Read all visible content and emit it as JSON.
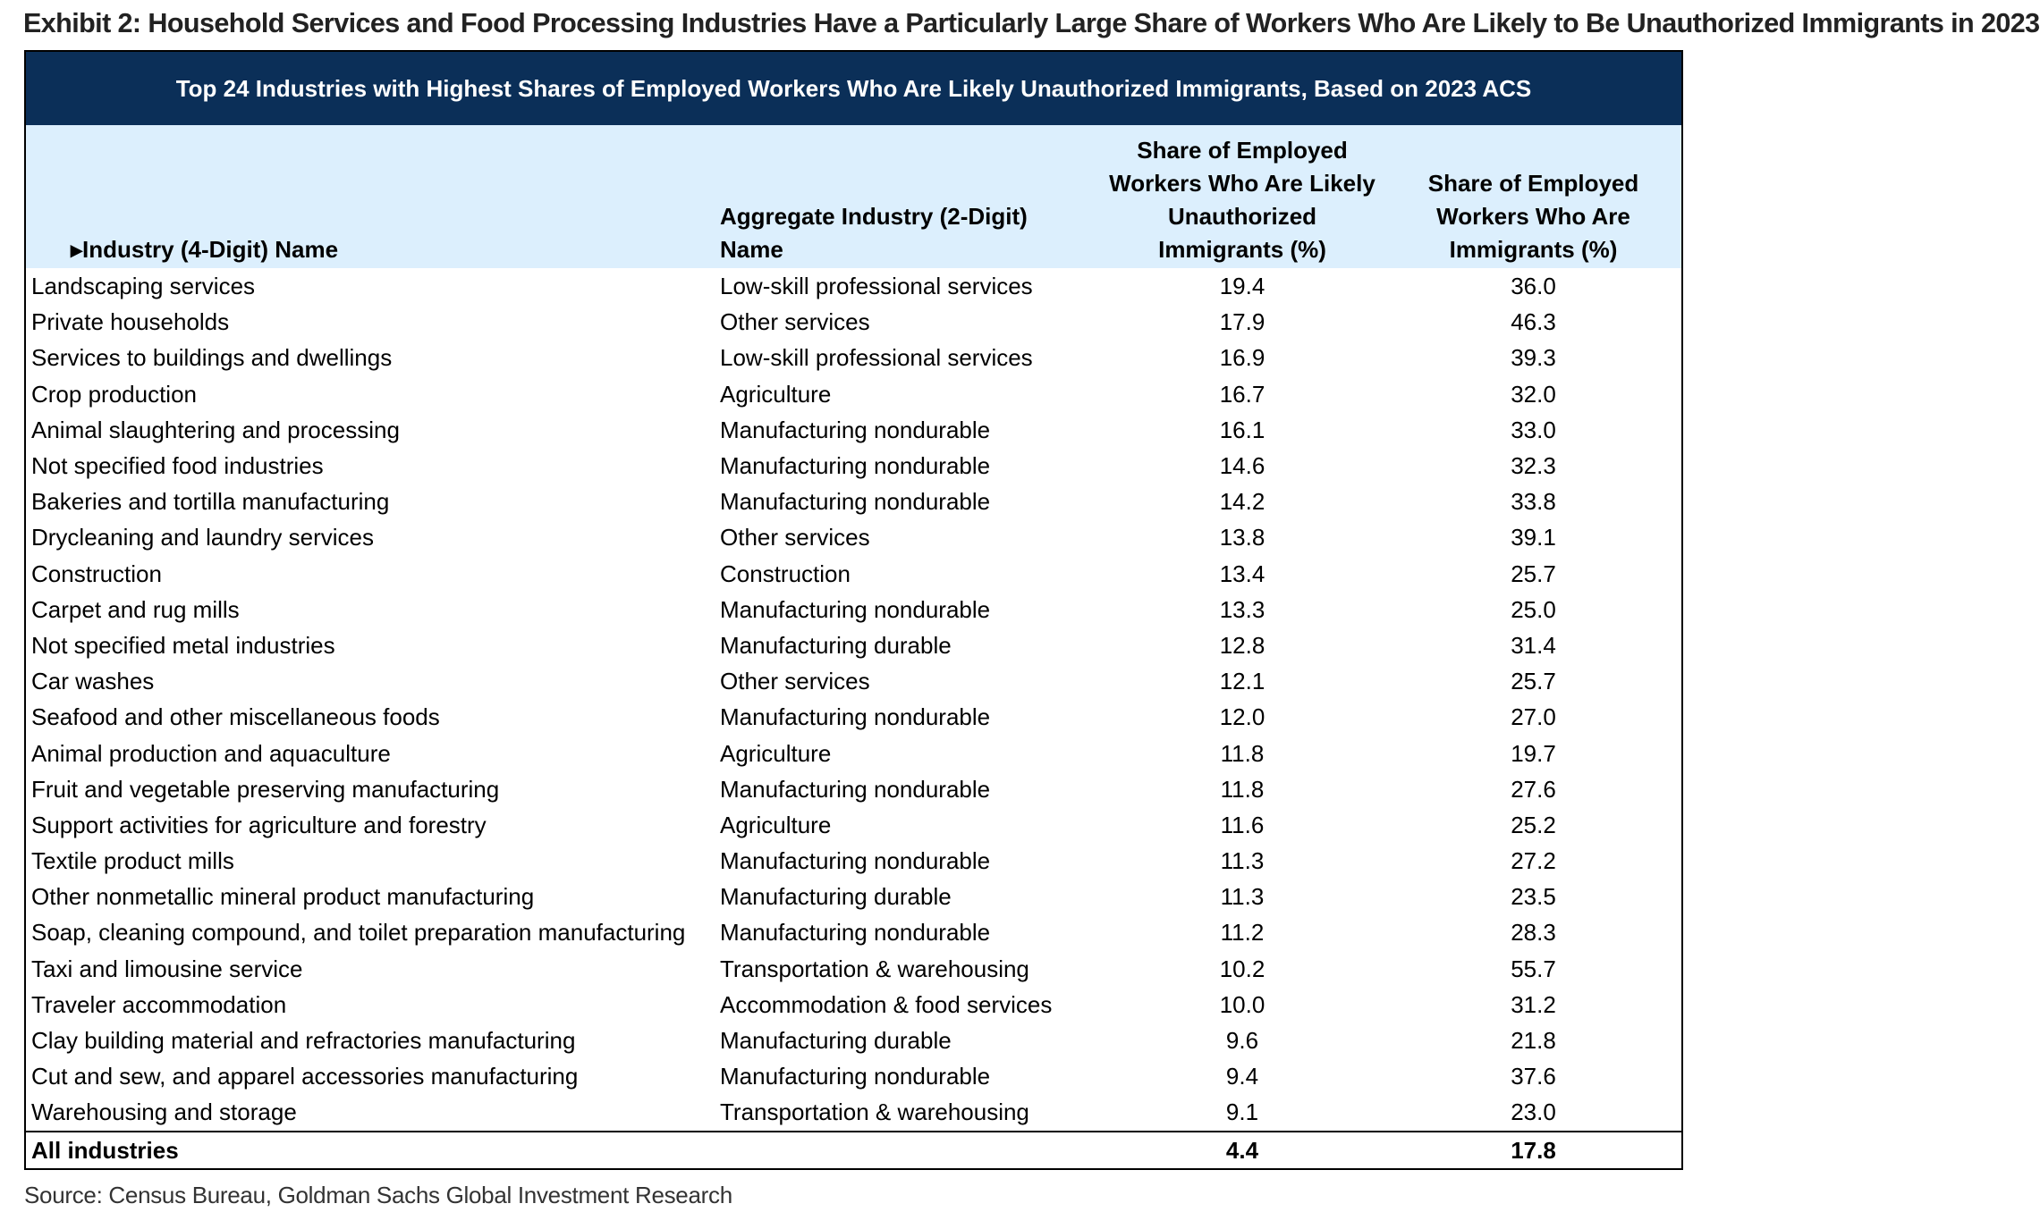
{
  "exhibit_title": "Exhibit 2: Household Services and Food Processing Industries Have a Particularly Large Share of Workers Who Are Likely to Be Unauthorized Immigrants in 2023",
  "table_title": "Top 24 Industries with Highest Shares of Employed Workers Who Are Likely Unauthorized Immigrants, Based on 2023 ACS",
  "headers": {
    "industry": "▸Industry (4-Digit) Name",
    "aggregate": "Aggregate Industry (2-Digit) Name",
    "unauthorized": "Share of Employed Workers Who Are Likely Unauthorized Immigrants (%)",
    "immigrants": "Share of Employed Workers Who Are Immigrants (%)"
  },
  "rows": [
    {
      "industry": "Landscaping services",
      "aggregate": "Low-skill professional services",
      "unauthorized": "19.4",
      "immigrants": "36.0"
    },
    {
      "industry": "Private households",
      "aggregate": "Other services",
      "unauthorized": "17.9",
      "immigrants": "46.3"
    },
    {
      "industry": "Services to buildings and dwellings",
      "aggregate": "Low-skill professional services",
      "unauthorized": "16.9",
      "immigrants": "39.3"
    },
    {
      "industry": "Crop production",
      "aggregate": "Agriculture",
      "unauthorized": "16.7",
      "immigrants": "32.0"
    },
    {
      "industry": "Animal slaughtering and processing",
      "aggregate": "Manufacturing nondurable",
      "unauthorized": "16.1",
      "immigrants": "33.0"
    },
    {
      "industry": "Not specified food industries",
      "aggregate": "Manufacturing nondurable",
      "unauthorized": "14.6",
      "immigrants": "32.3"
    },
    {
      "industry": "Bakeries and tortilla manufacturing",
      "aggregate": "Manufacturing nondurable",
      "unauthorized": "14.2",
      "immigrants": "33.8"
    },
    {
      "industry": "Drycleaning and laundry services",
      "aggregate": "Other services",
      "unauthorized": "13.8",
      "immigrants": "39.1"
    },
    {
      "industry": "Construction",
      "aggregate": "Construction",
      "unauthorized": "13.4",
      "immigrants": "25.7"
    },
    {
      "industry": "Carpet and rug mills",
      "aggregate": "Manufacturing nondurable",
      "unauthorized": "13.3",
      "immigrants": "25.0"
    },
    {
      "industry": "Not specified metal industries",
      "aggregate": "Manufacturing durable",
      "unauthorized": "12.8",
      "immigrants": "31.4"
    },
    {
      "industry": "Car washes",
      "aggregate": "Other services",
      "unauthorized": "12.1",
      "immigrants": "25.7"
    },
    {
      "industry": "Seafood and other miscellaneous foods",
      "aggregate": "Manufacturing nondurable",
      "unauthorized": "12.0",
      "immigrants": "27.0"
    },
    {
      "industry": "Animal production and aquaculture",
      "aggregate": "Agriculture",
      "unauthorized": "11.8",
      "immigrants": "19.7"
    },
    {
      "industry": "Fruit and vegetable preserving manufacturing",
      "aggregate": "Manufacturing nondurable",
      "unauthorized": "11.8",
      "immigrants": "27.6"
    },
    {
      "industry": "Support activities for agriculture and forestry",
      "aggregate": "Agriculture",
      "unauthorized": "11.6",
      "immigrants": "25.2"
    },
    {
      "industry": "Textile product mills",
      "aggregate": "Manufacturing nondurable",
      "unauthorized": "11.3",
      "immigrants": "27.2"
    },
    {
      "industry": "Other nonmetallic mineral product manufacturing",
      "aggregate": "Manufacturing durable",
      "unauthorized": "11.3",
      "immigrants": "23.5"
    },
    {
      "industry": "Soap, cleaning compound, and toilet preparation manufacturing",
      "aggregate": "Manufacturing nondurable",
      "unauthorized": "11.2",
      "immigrants": "28.3"
    },
    {
      "industry": "Taxi and limousine service",
      "aggregate": "Transportation & warehousing",
      "unauthorized": "10.2",
      "immigrants": "55.7"
    },
    {
      "industry": "Traveler accommodation",
      "aggregate": "Accommodation & food services",
      "unauthorized": "10.0",
      "immigrants": "31.2"
    },
    {
      "industry": "Clay building material and refractories manufacturing",
      "aggregate": "Manufacturing durable",
      "unauthorized": "9.6",
      "immigrants": "21.8"
    },
    {
      "industry": "Cut and sew, and apparel accessories manufacturing",
      "aggregate": "Manufacturing nondurable",
      "unauthorized": "9.4",
      "immigrants": "37.6"
    },
    {
      "industry": "Warehousing and storage",
      "aggregate": "Transportation & warehousing",
      "unauthorized": "9.1",
      "immigrants": "23.0"
    }
  ],
  "total": {
    "industry": "All industries",
    "aggregate": "",
    "unauthorized": "4.4",
    "immigrants": "17.8"
  },
  "source": "Source: Census Bureau, Goldman Sachs Global Investment Research",
  "colors": {
    "banner": "#0b2f58",
    "header_band": "#dceffd"
  }
}
